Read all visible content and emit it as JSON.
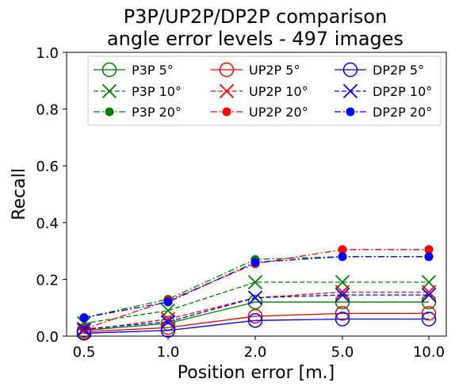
{
  "chart_data": {
    "type": "line",
    "title_lines": [
      "P3P/UP2P/DP2P comparison",
      "angle error levels - 497 images"
    ],
    "xlabel": "Position error [m.]",
    "ylabel": "Recall",
    "categories": [
      "0.5",
      "1.0",
      "2.0",
      "5.0",
      "10.0"
    ],
    "ylim": [
      0.0,
      1.0
    ],
    "yticks": [
      "0.0",
      "0.2",
      "0.4",
      "0.6",
      "0.8",
      "1.0"
    ],
    "grid": false,
    "legend_position": "top",
    "colors": {
      "P3P": "#008000",
      "UP2P": "#ff0000",
      "DP2P": "#0000ff"
    },
    "series": [
      {
        "name": "P3P 5°",
        "method": "P3P",
        "level": "5",
        "values": [
          0.02,
          0.045,
          0.12,
          0.12,
          0.12
        ]
      },
      {
        "name": "P3P 10°",
        "method": "P3P",
        "level": "10",
        "values": [
          0.045,
          0.09,
          0.19,
          0.19,
          0.19
        ]
      },
      {
        "name": "P3P 20°",
        "method": "P3P",
        "level": "20",
        "values": [
          0.065,
          0.13,
          0.27,
          0.28,
          0.28
        ]
      },
      {
        "name": "UP2P 5°",
        "method": "UP2P",
        "level": "5",
        "values": [
          0.015,
          0.03,
          0.07,
          0.08,
          0.08
        ]
      },
      {
        "name": "UP2P 10°",
        "method": "UP2P",
        "level": "10",
        "values": [
          0.02,
          0.06,
          0.135,
          0.155,
          0.155
        ]
      },
      {
        "name": "UP2P 20°",
        "method": "UP2P",
        "level": "20",
        "values": [
          0.025,
          0.125,
          0.255,
          0.305,
          0.305
        ]
      },
      {
        "name": "DP2P 5°",
        "method": "DP2P",
        "level": "5",
        "values": [
          0.01,
          0.02,
          0.055,
          0.06,
          0.06
        ]
      },
      {
        "name": "DP2P 10°",
        "method": "DP2P",
        "level": "10",
        "values": [
          0.025,
          0.05,
          0.135,
          0.145,
          0.145
        ]
      },
      {
        "name": "DP2P 20°",
        "method": "DP2P",
        "level": "20",
        "values": [
          0.065,
          0.12,
          0.26,
          0.28,
          0.28
        ]
      }
    ]
  }
}
